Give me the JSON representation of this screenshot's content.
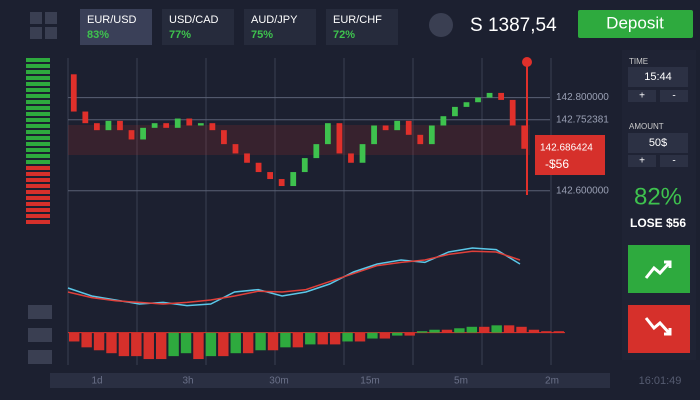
{
  "header": {
    "tabs": [
      {
        "pair": "EUR/USD",
        "payout": "83%"
      },
      {
        "pair": "USD/CAD",
        "payout": "77%"
      },
      {
        "pair": "AUD/JPY",
        "payout": "75%"
      },
      {
        "pair": "EUR/CHF",
        "payout": "72%"
      }
    ],
    "balance": "S 1387,54",
    "deposit": "Deposit"
  },
  "sidebar": {
    "time_label": "TIME",
    "time_value": "15:44",
    "amount_label": "AMOUNT",
    "amount_value": "50$",
    "plus": "+",
    "minus": "-",
    "payout": "82%",
    "result": "LOSE $56"
  },
  "price_chart": {
    "ylim": [
      142.58,
      142.885
    ],
    "yticks": [
      {
        "value": 142.8,
        "label": "142.800000"
      },
      {
        "value": 142.752381,
        "label": "142.752381"
      },
      {
        "value": 142.6,
        "label": "142.600000"
      }
    ],
    "position_price": "142.686424",
    "position_result": "-$56",
    "candles": [
      [
        142.85,
        142.77
      ],
      [
        142.77,
        142.745
      ],
      [
        142.745,
        142.73
      ],
      [
        142.73,
        142.75
      ],
      [
        142.75,
        142.73
      ],
      [
        142.73,
        142.71
      ],
      [
        142.71,
        142.735
      ],
      [
        142.735,
        142.745
      ],
      [
        142.745,
        142.735
      ],
      [
        142.735,
        142.755
      ],
      [
        142.755,
        142.74
      ],
      [
        142.74,
        142.745
      ],
      [
        142.745,
        142.73
      ],
      [
        142.73,
        142.7
      ],
      [
        142.7,
        142.68
      ],
      [
        142.68,
        142.66
      ],
      [
        142.66,
        142.64
      ],
      [
        142.64,
        142.625
      ],
      [
        142.625,
        142.61
      ],
      [
        142.61,
        142.64
      ],
      [
        142.64,
        142.67
      ],
      [
        142.67,
        142.7
      ],
      [
        142.7,
        142.745
      ],
      [
        142.745,
        142.68
      ],
      [
        142.68,
        142.66
      ],
      [
        142.66,
        142.7
      ],
      [
        142.7,
        142.74
      ],
      [
        142.74,
        142.73
      ],
      [
        142.73,
        142.75
      ],
      [
        142.75,
        142.72
      ],
      [
        142.72,
        142.7
      ],
      [
        142.7,
        142.74
      ],
      [
        142.74,
        142.76
      ],
      [
        142.76,
        142.78
      ],
      [
        142.78,
        142.79
      ],
      [
        142.79,
        142.8
      ],
      [
        142.8,
        142.81
      ],
      [
        142.81,
        142.795
      ],
      [
        142.795,
        142.74
      ],
      [
        142.74,
        142.69
      ]
    ]
  },
  "oscillator": {
    "ylim": [
      0,
      100
    ],
    "series": [
      {
        "color": "#5bc8e8",
        "values": [
          40,
          30,
          25,
          20,
          22,
          18,
          20,
          35,
          38,
          30,
          35,
          45,
          60,
          70,
          75,
          72,
          85,
          90,
          88,
          70
        ]
      },
      {
        "color": "#e0403a",
        "values": [
          35,
          28,
          24,
          22,
          20,
          22,
          25,
          30,
          36,
          35,
          38,
          48,
          58,
          68,
          72,
          75,
          82,
          86,
          85,
          75
        ]
      }
    ]
  },
  "histogram": {
    "ylim": [
      -10,
      5
    ],
    "values": [
      -3,
      -5,
      -6,
      -7,
      -8,
      -8,
      -9,
      -9,
      -8,
      -7,
      -9,
      -8,
      -8,
      -7,
      -7,
      -6,
      -6,
      -5,
      -5,
      -4,
      -4,
      -4,
      -3,
      -3,
      -2,
      -2,
      -1,
      -1,
      0.5,
      1,
      1,
      1.5,
      2,
      2,
      2.5,
      2.5,
      2,
      1,
      0.5,
      0.5
    ]
  },
  "timeline": {
    "ranges": [
      "1d",
      "3h",
      "30m",
      "15m",
      "5m",
      "2m"
    ],
    "clock": "16:01:49"
  }
}
